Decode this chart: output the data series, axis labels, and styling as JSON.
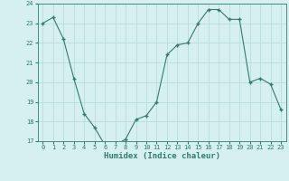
{
  "x": [
    0,
    1,
    2,
    3,
    4,
    5,
    6,
    7,
    8,
    9,
    10,
    11,
    12,
    13,
    14,
    15,
    16,
    17,
    18,
    19,
    20,
    21,
    22,
    23
  ],
  "y": [
    23,
    23.3,
    22.2,
    20.2,
    18.4,
    17.7,
    16.8,
    16.8,
    17.1,
    18.1,
    18.3,
    19.0,
    21.4,
    21.9,
    22.0,
    23.0,
    23.7,
    23.7,
    23.2,
    23.2,
    20.0,
    20.2,
    19.9,
    18.6
  ],
  "xlabel": "Humidex (Indice chaleur)",
  "ylim": [
    17,
    24
  ],
  "xlim": [
    -0.5,
    23.5
  ],
  "yticks": [
    17,
    18,
    19,
    20,
    21,
    22,
    23,
    24
  ],
  "xticks": [
    0,
    1,
    2,
    3,
    4,
    5,
    6,
    7,
    8,
    9,
    10,
    11,
    12,
    13,
    14,
    15,
    16,
    17,
    18,
    19,
    20,
    21,
    22,
    23
  ],
  "line_color": "#2e7d6e",
  "marker": "+",
  "bg_color": "#d6efef",
  "grid_color": "#b8dcdc",
  "axis_color": "#2e7d6e",
  "tick_color": "#2e7d6e",
  "label_color": "#2e7d6e",
  "tick_fontsize": 5.0,
  "xlabel_fontsize": 6.5
}
